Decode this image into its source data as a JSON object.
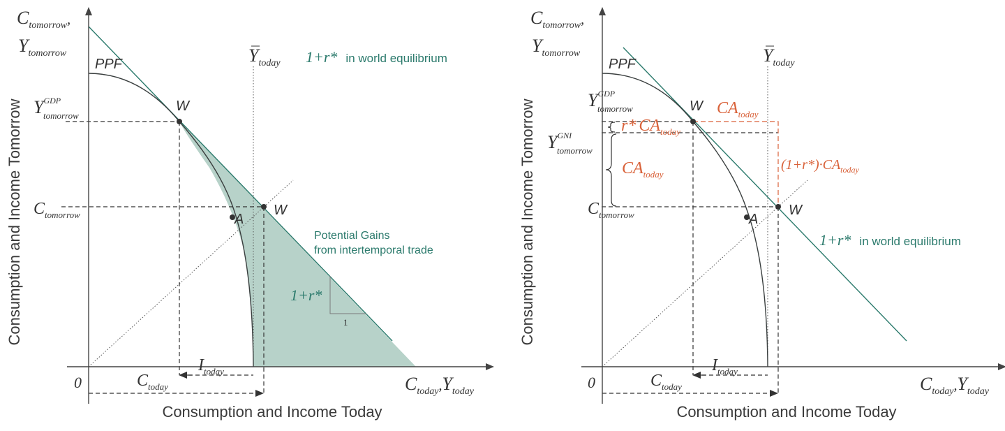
{
  "colors": {
    "axis": "#444444",
    "curve": "#3a3f3f",
    "teal": "#2b7a6c",
    "tealFill": "#b7d2c9",
    "orange": "#d9623a"
  },
  "left": {
    "y_axis_label": "Consumption and Income Tomorrow",
    "x_axis_label": "Consumption and Income Today",
    "y_axis_top": {
      "main": "C",
      "sub": "tomorrow",
      "comma": ",",
      "main2": "Y",
      "sub2": "tomorrow"
    },
    "x_axis_end": {
      "main": "C",
      "sub": "today",
      "comma": ",",
      "main2": "Y",
      "sub2": "today"
    },
    "origin": "0",
    "ppf": "PPF",
    "ybar": {
      "main": "Y",
      "sub": "today"
    },
    "world_eq": {
      "math": "1+r*",
      "text": "in world equilibrium"
    },
    "y_gdp": {
      "main": "Y",
      "sup": "GDP",
      "sub": "tomorrow"
    },
    "c_tomorrow": {
      "main": "C",
      "sub": "tomorrow"
    },
    "point_w1": "W",
    "point_w2": "W",
    "point_a": "A",
    "gains_line1": "Potential Gains",
    "gains_line2": "from intertemporal trade",
    "slope": "1+r*",
    "slope_run": "1",
    "i_today": {
      "main": "I",
      "sub": "today"
    },
    "c_today": {
      "main": "C",
      "sub": "today"
    }
  },
  "right": {
    "y_axis_label": "Consumption and Income Tomorrow",
    "x_axis_label": "Consumption and Income Today",
    "y_axis_top": {
      "main": "C",
      "sub": "tomorrow",
      "comma": ",",
      "main2": "Y",
      "sub2": "tomorrow"
    },
    "x_axis_end": {
      "main": "C",
      "sub": "today",
      "comma": ",",
      "main2": "Y",
      "sub2": "today"
    },
    "origin": "0",
    "ppf": "PPF",
    "ybar": {
      "main": "Y",
      "sub": "today"
    },
    "y_gdp": {
      "main": "Y",
      "sup": "GDP",
      "sub": "tomorrow"
    },
    "y_gni": {
      "main": "Y",
      "sup": "GNI",
      "sub": "tomorrow"
    },
    "c_tomorrow": {
      "main": "C",
      "sub": "tomorrow"
    },
    "point_w1": "W",
    "point_w2": "W",
    "point_a": "A",
    "ca_today_top": {
      "main": "CA",
      "sub": "today"
    },
    "r_ca": {
      "pre": "r*",
      "main": "CA",
      "sub": "today"
    },
    "ca_brace": {
      "main": "CA",
      "sub": "today"
    },
    "one_plus_r_ca": {
      "pre": "(1+r*)·",
      "main": "CA",
      "sub": "today"
    },
    "world_eq": {
      "math": "1+r*",
      "text": "in world equilibrium"
    },
    "i_today": {
      "main": "I",
      "sub": "today"
    },
    "c_today": {
      "main": "C",
      "sub": "today"
    }
  }
}
